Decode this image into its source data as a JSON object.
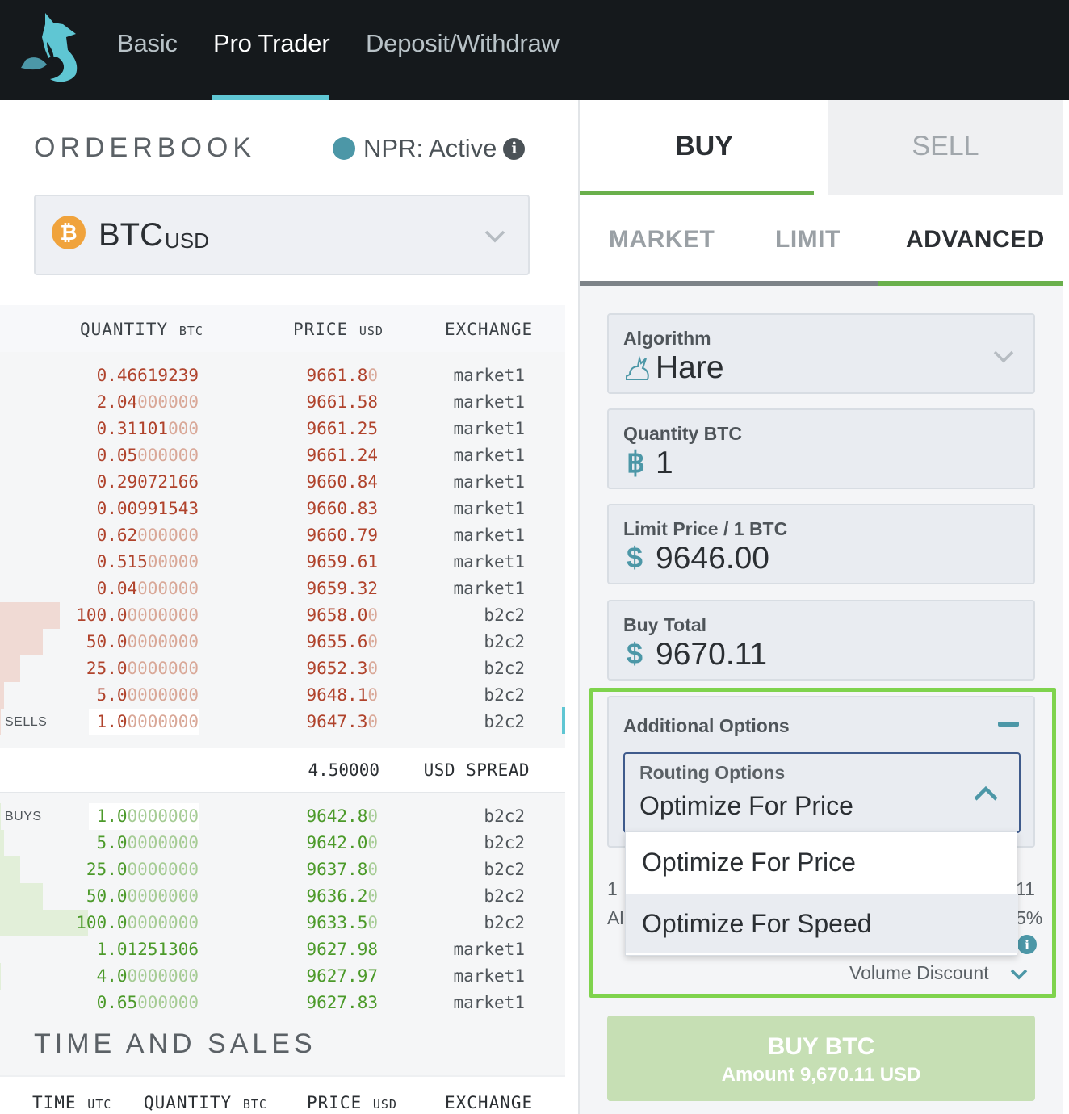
{
  "nav": {
    "items": [
      {
        "label": "Basic",
        "active": false
      },
      {
        "label": "Pro Trader",
        "active": true
      },
      {
        "label": "Deposit/Withdraw",
        "active": false
      }
    ]
  },
  "orderbook": {
    "title": "ORDERBOOK",
    "npr_status": "NPR: Active",
    "pair_base": "BTC",
    "pair_quote": "USD",
    "columns": {
      "quantity": "QUANTITY",
      "quantity_unit": "BTC",
      "price": "PRICE",
      "price_unit": "USD",
      "exchange": "EXCHANGE"
    },
    "sells_label": "SELLS",
    "buys_label": "BUYS",
    "sells": [
      {
        "qv": "0.46619239",
        "qd": "",
        "pv": "9661.8",
        "pd": "0",
        "ex": "market1",
        "depth": 0
      },
      {
        "qv": "2.04",
        "qd": "000000",
        "pv": "9661.58",
        "pd": "",
        "ex": "market1",
        "depth": 0
      },
      {
        "qv": "0.31101",
        "qd": "000",
        "pv": "9661.25",
        "pd": "",
        "ex": "market1",
        "depth": 0
      },
      {
        "qv": "0.05",
        "qd": "000000",
        "pv": "9661.24",
        "pd": "",
        "ex": "market1",
        "depth": 0
      },
      {
        "qv": "0.29072166",
        "qd": "",
        "pv": "9660.84",
        "pd": "",
        "ex": "market1",
        "depth": 0
      },
      {
        "qv": "0.00991543",
        "qd": "",
        "pv": "9660.83",
        "pd": "",
        "ex": "market1",
        "depth": 0
      },
      {
        "qv": "0.62",
        "qd": "000000",
        "pv": "9660.79",
        "pd": "",
        "ex": "market1",
        "depth": 0
      },
      {
        "qv": "0.515",
        "qd": "00000",
        "pv": "9659.61",
        "pd": "",
        "ex": "market1",
        "depth": 0
      },
      {
        "qv": "0.04",
        "qd": "000000",
        "pv": "9659.32",
        "pd": "",
        "ex": "market1",
        "depth": 0
      },
      {
        "qv": "100.0",
        "qd": "0000000",
        "pv": "9658.0",
        "pd": "0",
        "ex": "b2c2",
        "depth": 0.105
      },
      {
        "qv": "50.0",
        "qd": "0000000",
        "pv": "9655.6",
        "pd": "0",
        "ex": "b2c2",
        "depth": 0.075
      },
      {
        "qv": "25.0",
        "qd": "0000000",
        "pv": "9652.3",
        "pd": "0",
        "ex": "b2c2",
        "depth": 0.035
      },
      {
        "qv": "5.0",
        "qd": "0000000",
        "pv": "9648.1",
        "pd": "0",
        "ex": "b2c2",
        "depth": 0.007
      },
      {
        "qv": "1.0",
        "qd": "0000000",
        "pv": "9647.3",
        "pd": "0",
        "ex": "b2c2",
        "depth": 0.002
      }
    ],
    "spread_value": "4.50000",
    "spread_label": "USD SPREAD",
    "buys": [
      {
        "qv": "1.0",
        "qd": "0000000",
        "pv": "9642.8",
        "pd": "0",
        "ex": "b2c2",
        "depth": 0.002
      },
      {
        "qv": "5.0",
        "qd": "0000000",
        "pv": "9642.0",
        "pd": "0",
        "ex": "b2c2",
        "depth": 0.007
      },
      {
        "qv": "25.0",
        "qd": "0000000",
        "pv": "9637.8",
        "pd": "0",
        "ex": "b2c2",
        "depth": 0.035
      },
      {
        "qv": "50.0",
        "qd": "0000000",
        "pv": "9636.2",
        "pd": "0",
        "ex": "b2c2",
        "depth": 0.075
      },
      {
        "qv": "100.0",
        "qd": "0000000",
        "pv": "9633.5",
        "pd": "0",
        "ex": "b2c2",
        "depth": 0.155
      },
      {
        "qv": "1.01251306",
        "qd": "",
        "pv": "9627.98",
        "pd": "",
        "ex": "market1",
        "depth": 0
      },
      {
        "qv": "4.0",
        "qd": "0000000",
        "pv": "9627.97",
        "pd": "",
        "ex": "market1",
        "depth": 0.002
      },
      {
        "qv": "0.65",
        "qd": "000000",
        "pv": "9627.83",
        "pd": "",
        "ex": "market1",
        "depth": 0
      }
    ]
  },
  "time_and_sales": {
    "title": "TIME AND SALES",
    "columns": {
      "time": "TIME",
      "time_unit": "UTC",
      "quantity": "QUANTITY",
      "quantity_unit": "BTC",
      "price": "PRICE",
      "price_unit": "USD",
      "exchange": "EXCHANGE"
    }
  },
  "order_form": {
    "tabs": {
      "buy": "BUY",
      "sell": "SELL"
    },
    "subtabs": {
      "market": "MARKET",
      "limit": "LIMIT",
      "advanced": "ADVANCED"
    },
    "algorithm": {
      "label": "Algorithm",
      "value": "Hare"
    },
    "quantity": {
      "label": "Quantity BTC",
      "symbol": "฿",
      "value": "1"
    },
    "limit_price": {
      "label": "Limit Price / 1 BTC",
      "symbol": "$",
      "value": "9646.00"
    },
    "buy_total": {
      "label": "Buy Total",
      "symbol": "$",
      "value": "9670.11"
    },
    "additional_options": {
      "label": "Additional Options"
    },
    "routing": {
      "label": "Routing Options",
      "value": "Optimize For Price",
      "options": [
        "Optimize For Price",
        "Optimize For Speed"
      ]
    },
    "partially_hidden": {
      "left_1": "1",
      "left_2": "Al",
      "right_1": "11",
      "right_2": "5%"
    },
    "volume_discount": "Volume Discount",
    "buy_button": {
      "line1": "BUY BTC",
      "line2": "Amount 9,670.11 USD"
    }
  },
  "colors": {
    "accent_teal": "#5fc6d3",
    "buy_green": "#6ab04c",
    "sell_red": "#b0432c",
    "highlight_green": "#7fd34d"
  }
}
